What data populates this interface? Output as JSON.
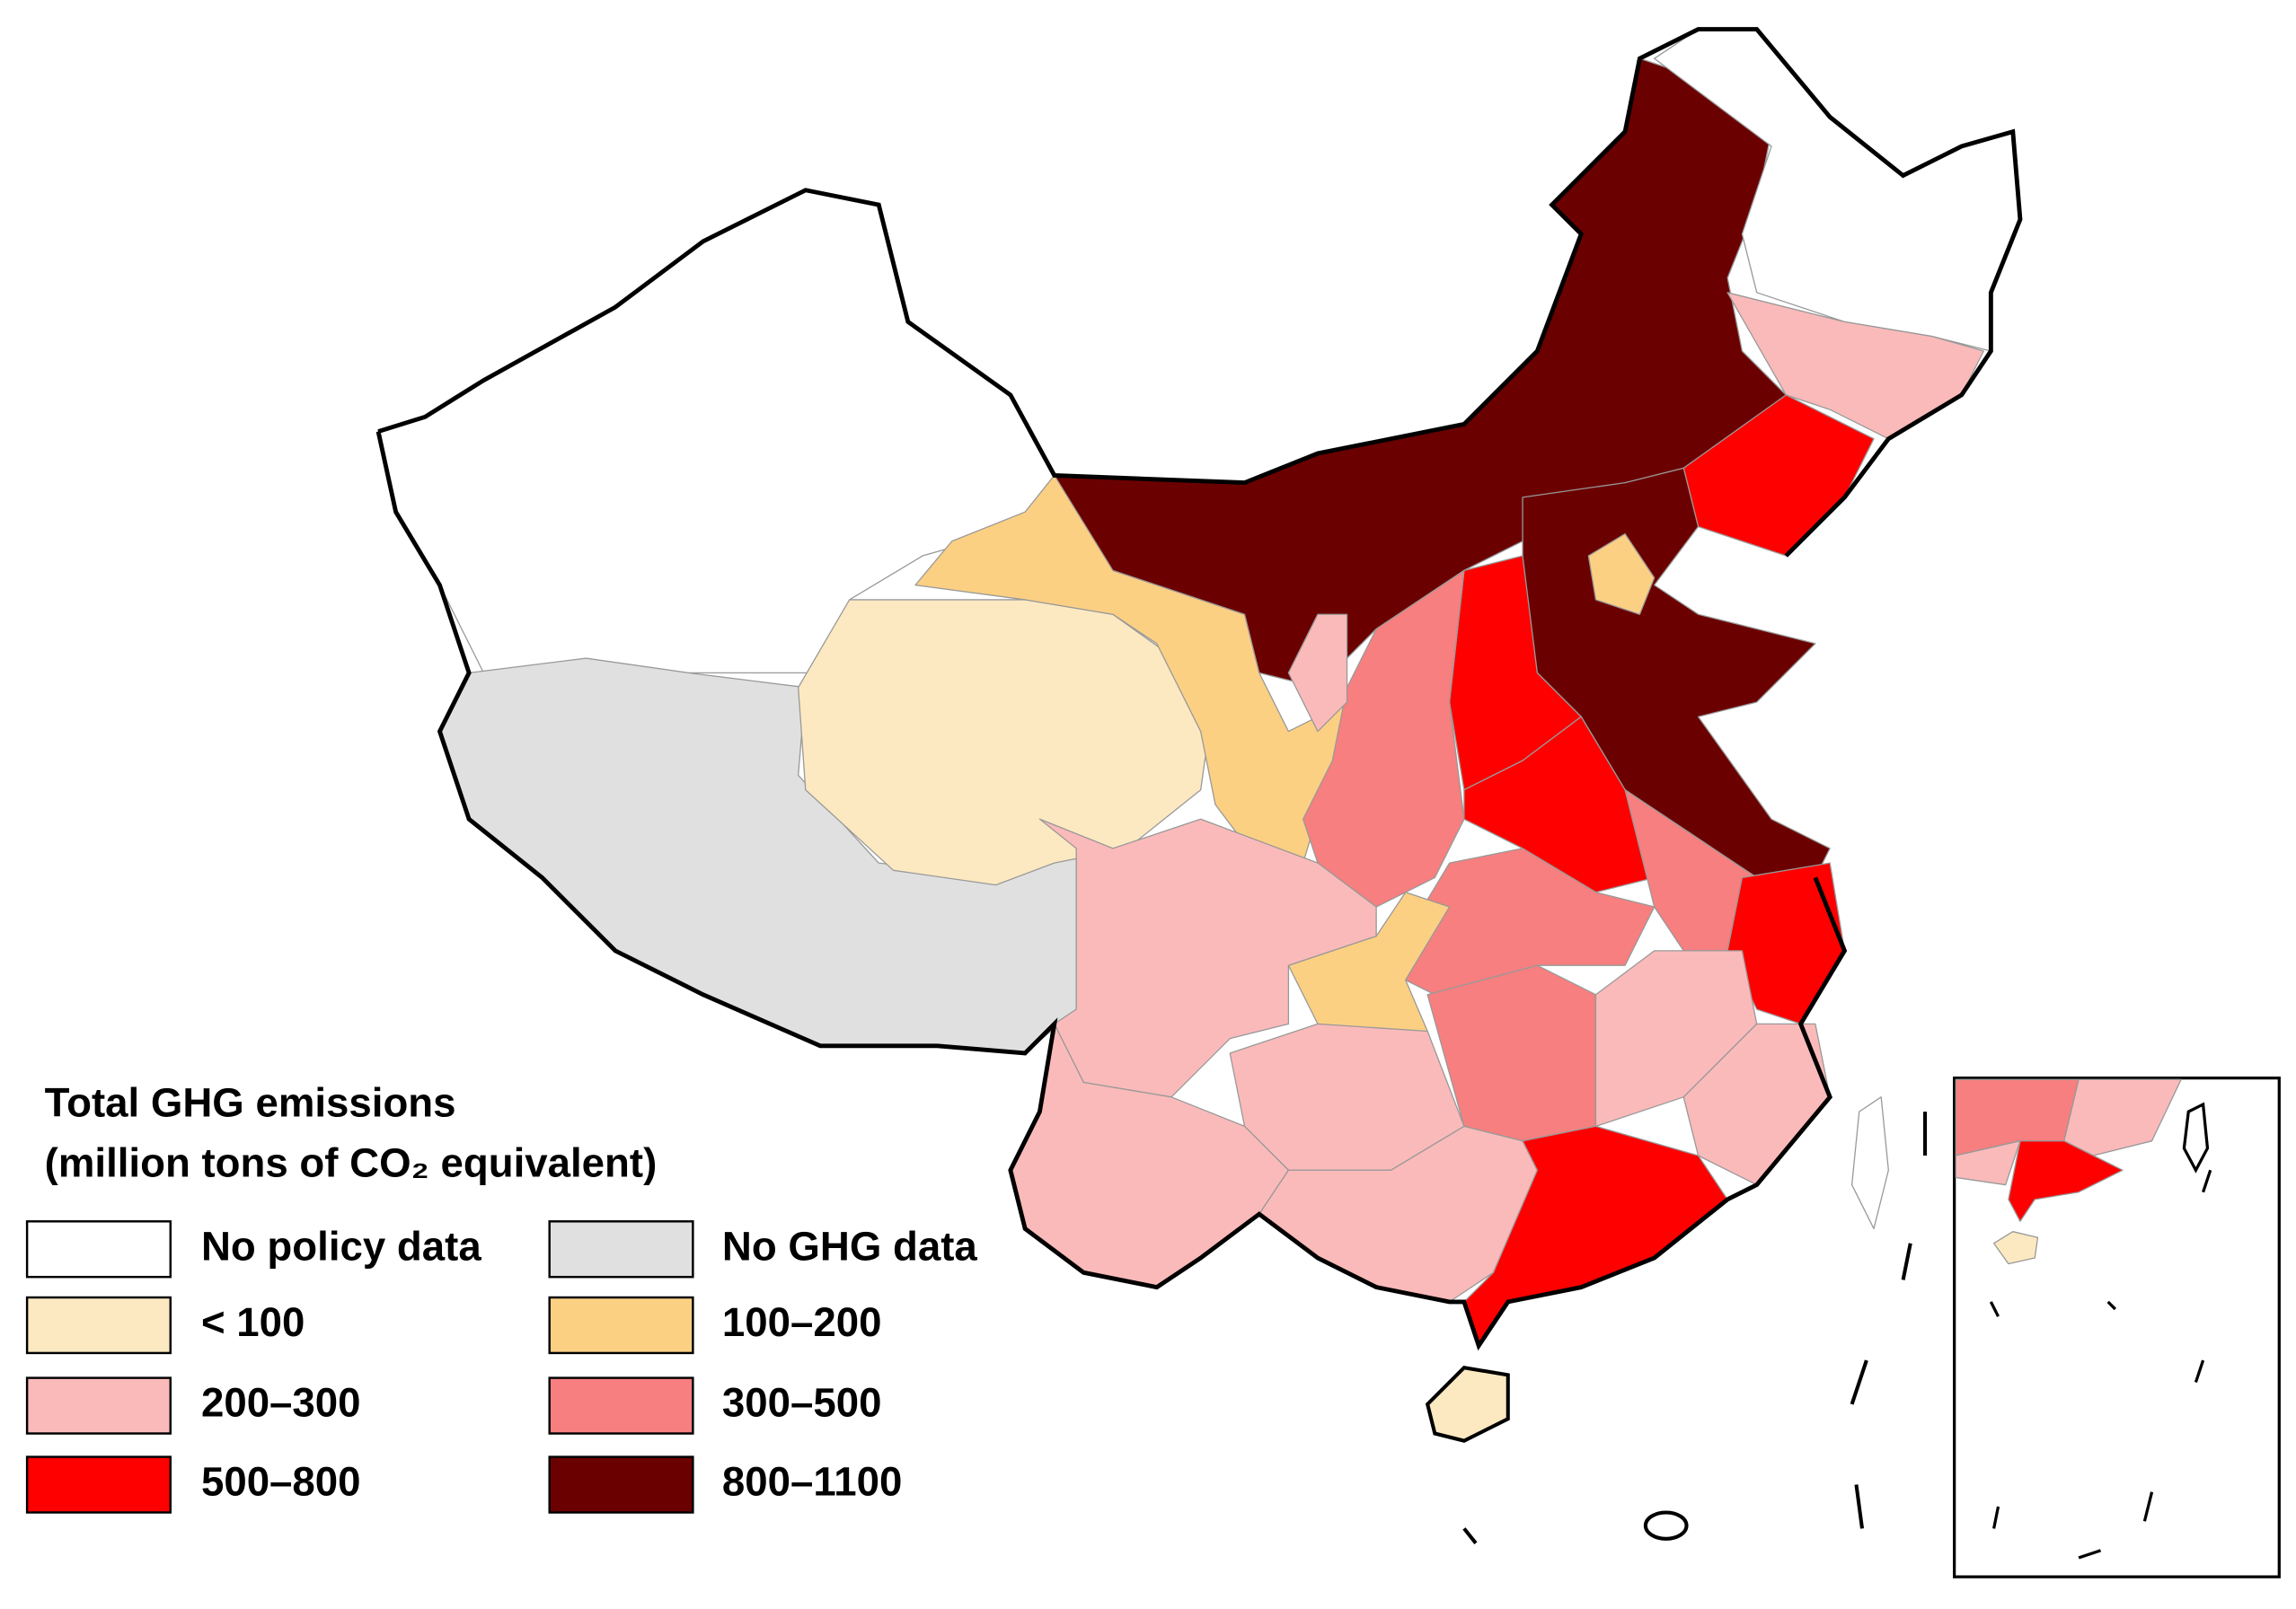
{
  "legend": {
    "title": "Total GHG emissions",
    "subtitle": "(million tons of CO₂ equivalent)",
    "items": [
      {
        "label": "No policy data",
        "color": "#ffffff"
      },
      {
        "label": "No GHG data",
        "color": "#e0e0e0"
      },
      {
        "label": "< 100",
        "color": "#fde9c1"
      },
      {
        "label": "100–200",
        "color": "#fcd083"
      },
      {
        "label": "200–300",
        "color": "#fbbaba"
      },
      {
        "label": "300–500",
        "color": "#f77f7f"
      },
      {
        "label": "500–800",
        "color": "#ff0000"
      },
      {
        "label": "800–1100",
        "color": "#6b0000"
      }
    ]
  }
}
